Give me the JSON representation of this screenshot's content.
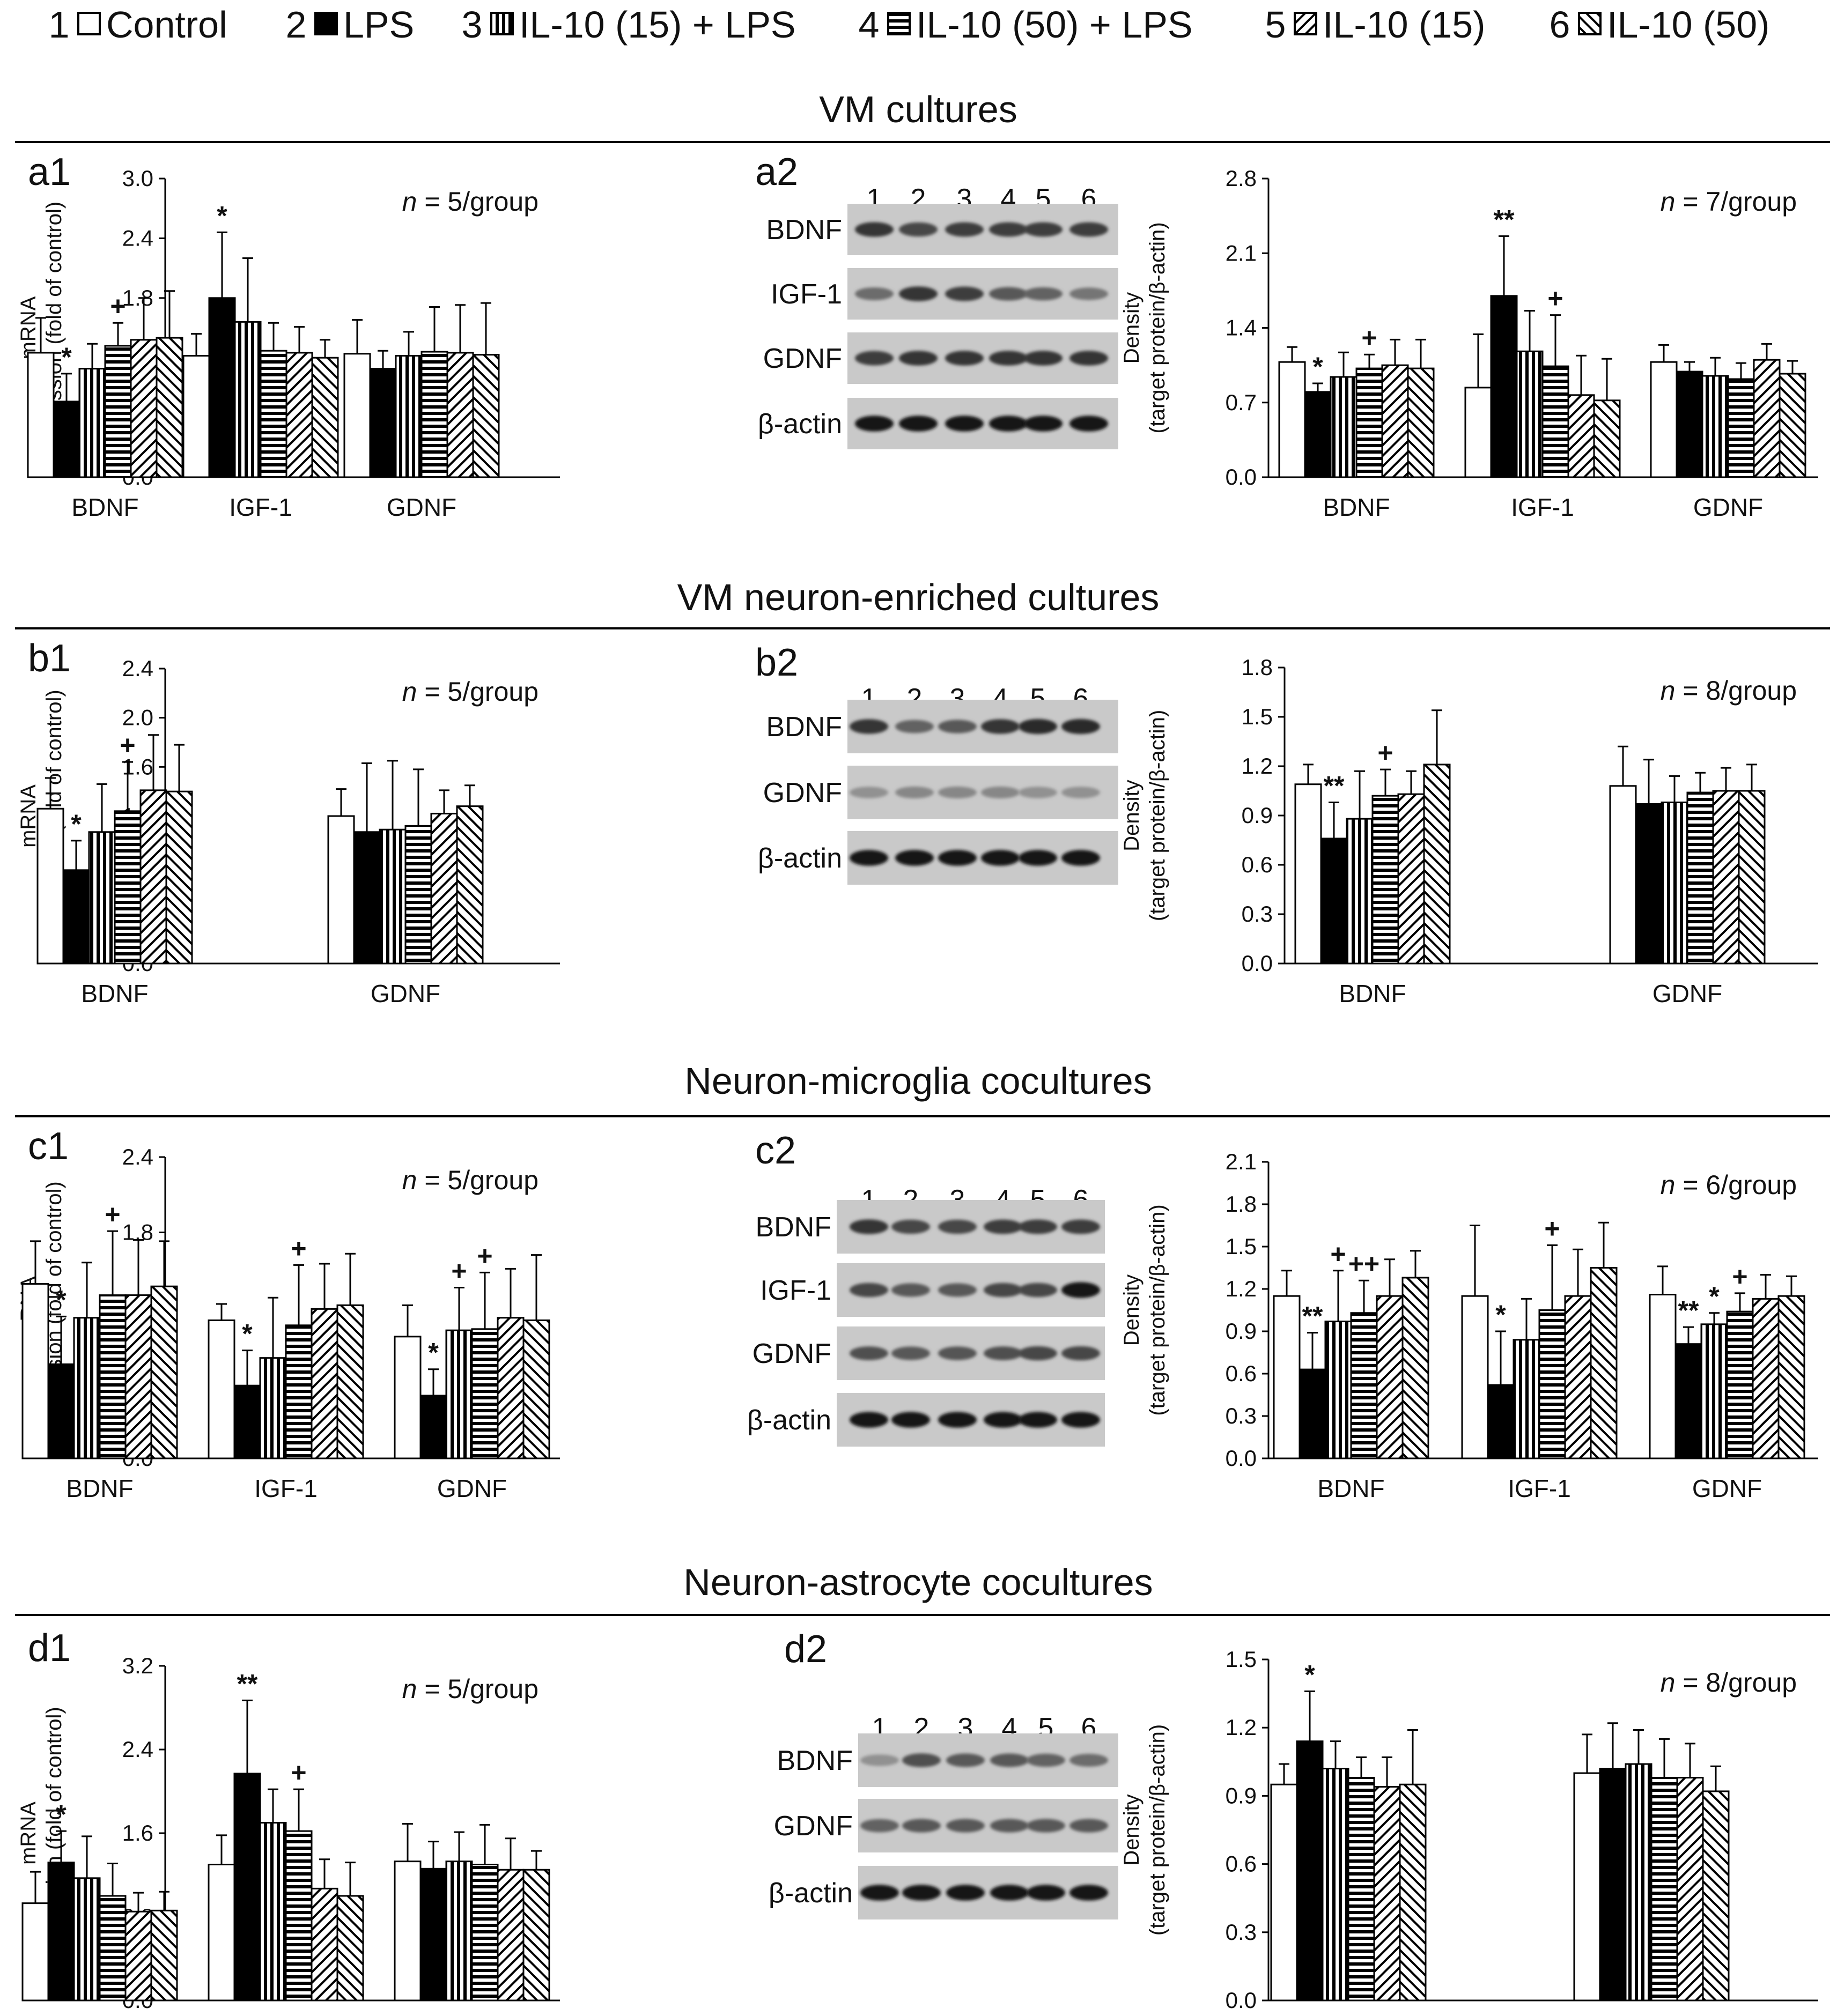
{
  "legend": {
    "items": [
      {
        "num": "1",
        "label": "Control",
        "pattern": "white"
      },
      {
        "num": "2",
        "label": "LPS",
        "pattern": "black"
      },
      {
        "num": "3",
        "label": "IL-10 (15) + LPS",
        "pattern": "vert"
      },
      {
        "num": "4",
        "label": "IL-10 (50) + LPS",
        "pattern": "horiz"
      },
      {
        "num": "5",
        "label": "IL-10 (15)",
        "pattern": "diagdown"
      },
      {
        "num": "6",
        "label": "IL-10 (50)",
        "pattern": "diagup"
      }
    ]
  },
  "sections": [
    {
      "title": "VM cultures"
    },
    {
      "title": "VM neuron-enriched cultures"
    },
    {
      "title": "Neuron-microglia cocultures"
    },
    {
      "title": "Neuron-astrocyte cocultures"
    }
  ],
  "blots": [
    {
      "panel_label": "a2",
      "lanes": [
        "1",
        "2",
        "3",
        "4",
        "5",
        "6"
      ],
      "rows": [
        "BDNF",
        "IGF-1",
        "GDNF",
        "β-actin"
      ]
    },
    {
      "panel_label": "b2",
      "lanes": [
        "1",
        "2",
        "3",
        "4",
        "5",
        "6"
      ],
      "rows": [
        "BDNF",
        "GDNF",
        "β-actin"
      ]
    },
    {
      "panel_label": "c2",
      "lanes": [
        "1",
        "2",
        "3",
        "4",
        "5",
        "6"
      ],
      "rows": [
        "BDNF",
        "IGF-1",
        "GDNF",
        "β-actin"
      ]
    },
    {
      "panel_label": "d2",
      "lanes": [
        "1",
        "2",
        "3",
        "4",
        "5",
        "6"
      ],
      "rows": [
        "BDNF",
        "GDNF",
        "β-actin"
      ]
    }
  ],
  "chart_data": [
    {
      "panel_label": "a1",
      "type": "bar",
      "ylabel": "mRNA expression (fold of control)",
      "ylim": [
        0,
        3.0
      ],
      "yticks": [
        "0.0",
        "0.6",
        "1.2",
        "1.8",
        "2.4",
        "3.0"
      ],
      "n_label": "n = 5/group",
      "categories": [
        "BDNF",
        "IGF-1",
        "GDNF"
      ],
      "series": [
        {
          "name": "Control",
          "values": [
            1.25,
            1.22,
            1.24
          ],
          "errors": [
            0.35,
            0.22,
            0.34
          ]
        },
        {
          "name": "LPS",
          "values": [
            0.76,
            1.8,
            1.09
          ],
          "errors": [
            0.28,
            0.66,
            0.18
          ]
        },
        {
          "name": "IL-10 (15) + LPS",
          "values": [
            1.09,
            1.56,
            1.22
          ],
          "errors": [
            0.25,
            0.64,
            0.24
          ]
        },
        {
          "name": "IL-10 (50) + LPS",
          "values": [
            1.32,
            1.27,
            1.26
          ],
          "errors": [
            0.23,
            0.28,
            0.45
          ]
        },
        {
          "name": "IL-10 (15)",
          "values": [
            1.38,
            1.25,
            1.25
          ],
          "errors": [
            0.42,
            0.26,
            0.48
          ]
        },
        {
          "name": "IL-10 (50)",
          "values": [
            1.4,
            1.2,
            1.23
          ],
          "errors": [
            0.47,
            0.18,
            0.52
          ]
        }
      ],
      "annotations": [
        {
          "cat": 0,
          "bar": 1,
          "text": "*"
        },
        {
          "cat": 0,
          "bar": 3,
          "text": "+"
        },
        {
          "cat": 1,
          "bar": 1,
          "text": "*"
        }
      ]
    },
    {
      "panel_label": "",
      "type": "bar",
      "ylabel": "Density (target protein/β-actin)",
      "ylim": [
        0,
        2.8
      ],
      "yticks": [
        "0.0",
        "0.7",
        "1.4",
        "2.1",
        "2.8"
      ],
      "n_label": "n = 7/group",
      "categories": [
        "BDNF",
        "IGF-1",
        "GDNF"
      ],
      "series": [
        {
          "name": "Control",
          "values": [
            1.08,
            0.84,
            1.08
          ],
          "errors": [
            0.14,
            0.5,
            0.16
          ]
        },
        {
          "name": "LPS",
          "values": [
            0.8,
            1.7,
            0.99
          ],
          "errors": [
            0.08,
            0.56,
            0.09
          ]
        },
        {
          "name": "IL-10 (15) + LPS",
          "values": [
            0.94,
            1.18,
            0.95
          ],
          "errors": [
            0.23,
            0.38,
            0.17
          ]
        },
        {
          "name": "IL-10 (50) + LPS",
          "values": [
            1.02,
            1.04,
            0.92
          ],
          "errors": [
            0.13,
            0.48,
            0.15
          ]
        },
        {
          "name": "IL-10 (15)",
          "values": [
            1.05,
            0.77,
            1.1
          ],
          "errors": [
            0.24,
            0.37,
            0.15
          ]
        },
        {
          "name": "IL-10 (50)",
          "values": [
            1.02,
            0.72,
            0.97
          ],
          "errors": [
            0.27,
            0.39,
            0.12
          ]
        }
      ],
      "annotations": [
        {
          "cat": 0,
          "bar": 1,
          "text": "*"
        },
        {
          "cat": 0,
          "bar": 3,
          "text": "+"
        },
        {
          "cat": 1,
          "bar": 1,
          "text": "**"
        },
        {
          "cat": 1,
          "bar": 3,
          "text": "+"
        }
      ]
    },
    {
      "panel_label": "b1",
      "type": "bar",
      "ylabel": "mRNA expression (fold of control)",
      "ylim": [
        0,
        2.4
      ],
      "yticks": [
        "0.0",
        "0.4",
        "0.8",
        "1.2",
        "1.6",
        "2.0",
        "2.4"
      ],
      "n_label": "n = 5/group",
      "categories": [
        "BDNF",
        "GDNF"
      ],
      "series": [
        {
          "name": "Control",
          "values": [
            1.26,
            1.2
          ],
          "errors": [
            0.25,
            0.22
          ]
        },
        {
          "name": "LPS",
          "values": [
            0.76,
            1.07
          ],
          "errors": [
            0.24,
            0.56
          ]
        },
        {
          "name": "IL-10 (15) + LPS",
          "values": [
            1.07,
            1.09
          ],
          "errors": [
            0.39,
            0.56
          ]
        },
        {
          "name": "IL-10 (50) + LPS",
          "values": [
            1.24,
            1.12
          ],
          "errors": [
            0.4,
            0.46
          ]
        },
        {
          "name": "IL-10 (15)",
          "values": [
            1.41,
            1.22
          ],
          "errors": [
            0.45,
            0.19
          ]
        },
        {
          "name": "IL-10 (50)",
          "values": [
            1.4,
            1.28
          ],
          "errors": [
            0.38,
            0.17
          ]
        }
      ],
      "annotations": [
        {
          "cat": 0,
          "bar": 1,
          "text": "*"
        },
        {
          "cat": 0,
          "bar": 3,
          "text": "+"
        }
      ]
    },
    {
      "panel_label": "",
      "type": "bar",
      "ylabel": "Density (target protein/β-actin)",
      "ylim": [
        0,
        1.8
      ],
      "yticks": [
        "0.0",
        "0.3",
        "0.6",
        "0.9",
        "1.2",
        "1.5",
        "1.8"
      ],
      "n_label": "n = 8/group",
      "categories": [
        "BDNF",
        "GDNF"
      ],
      "series": [
        {
          "name": "Control",
          "values": [
            1.09,
            1.08
          ],
          "errors": [
            0.12,
            0.24
          ]
        },
        {
          "name": "LPS",
          "values": [
            0.76,
            0.97
          ],
          "errors": [
            0.22,
            0.27
          ]
        },
        {
          "name": "IL-10 (15) + LPS",
          "values": [
            0.88,
            0.98
          ],
          "errors": [
            0.29,
            0.16
          ]
        },
        {
          "name": "IL-10 (50) + LPS",
          "values": [
            1.02,
            1.04
          ],
          "errors": [
            0.16,
            0.12
          ]
        },
        {
          "name": "IL-10 (15)",
          "values": [
            1.03,
            1.05
          ],
          "errors": [
            0.14,
            0.14
          ]
        },
        {
          "name": "IL-10 (50)",
          "values": [
            1.21,
            1.05
          ],
          "errors": [
            0.33,
            0.16
          ]
        }
      ],
      "annotations": [
        {
          "cat": 0,
          "bar": 1,
          "text": "**"
        },
        {
          "cat": 0,
          "bar": 3,
          "text": "+"
        }
      ]
    },
    {
      "panel_label": "c1",
      "type": "bar",
      "ylabel": "mRNA expression (fold of control)",
      "ylim": [
        0,
        2.4
      ],
      "yticks": [
        "0.0",
        "0.6",
        "1.2",
        "1.8",
        "2.4"
      ],
      "n_label": "n = 5/group",
      "categories": [
        "BDNF",
        "IGF-1",
        "GDNF"
      ],
      "series": [
        {
          "name": "Control",
          "values": [
            1.39,
            1.1,
            0.97
          ],
          "errors": [
            0.34,
            0.13,
            0.25
          ]
        },
        {
          "name": "LPS",
          "values": [
            0.75,
            0.58,
            0.5
          ],
          "errors": [
            0.38,
            0.28,
            0.21
          ]
        },
        {
          "name": "IL-10 (15) + LPS",
          "values": [
            1.12,
            0.8,
            1.02
          ],
          "errors": [
            0.44,
            0.48,
            0.34
          ]
        },
        {
          "name": "IL-10 (50) + LPS",
          "values": [
            1.3,
            1.06,
            1.03
          ],
          "errors": [
            0.51,
            0.48,
            0.45
          ]
        },
        {
          "name": "IL-10 (15)",
          "values": [
            1.3,
            1.19,
            1.12
          ],
          "errors": [
            0.44,
            0.36,
            0.39
          ]
        },
        {
          "name": "IL-10 (50)",
          "values": [
            1.37,
            1.22,
            1.1
          ],
          "errors": [
            0.36,
            0.41,
            0.52
          ]
        }
      ],
      "annotations": [
        {
          "cat": 0,
          "bar": 1,
          "text": "*"
        },
        {
          "cat": 0,
          "bar": 3,
          "text": "+"
        },
        {
          "cat": 1,
          "bar": 1,
          "text": "*"
        },
        {
          "cat": 1,
          "bar": 3,
          "text": "+"
        },
        {
          "cat": 2,
          "bar": 1,
          "text": "*"
        },
        {
          "cat": 2,
          "bar": 2,
          "text": "+"
        },
        {
          "cat": 2,
          "bar": 3,
          "text": "+"
        }
      ]
    },
    {
      "panel_label": "",
      "type": "bar",
      "ylabel": "Density (target protein/β-actin)",
      "ylim": [
        0,
        2.1
      ],
      "yticks": [
        "0.0",
        "0.3",
        "0.6",
        "0.9",
        "1.2",
        "1.5",
        "1.8",
        "2.1"
      ],
      "n_label": "n = 6/group",
      "categories": [
        "BDNF",
        "IGF-1",
        "GDNF"
      ],
      "series": [
        {
          "name": "Control",
          "values": [
            1.15,
            1.15,
            1.16
          ],
          "errors": [
            0.18,
            0.5,
            0.2
          ]
        },
        {
          "name": "LPS",
          "values": [
            0.63,
            0.52,
            0.81
          ],
          "errors": [
            0.26,
            0.38,
            0.12
          ]
        },
        {
          "name": "IL-10 (15) + LPS",
          "values": [
            0.97,
            0.84,
            0.95
          ],
          "errors": [
            0.36,
            0.29,
            0.08
          ]
        },
        {
          "name": "IL-10 (50) + LPS",
          "values": [
            1.03,
            1.05,
            1.04
          ],
          "errors": [
            0.23,
            0.46,
            0.13
          ]
        },
        {
          "name": "IL-10 (15)",
          "values": [
            1.15,
            1.15,
            1.13
          ],
          "errors": [
            0.26,
            0.33,
            0.17
          ]
        },
        {
          "name": "IL-10 (50)",
          "values": [
            1.28,
            1.35,
            1.15
          ],
          "errors": [
            0.19,
            0.32,
            0.14
          ]
        }
      ],
      "annotations": [
        {
          "cat": 0,
          "bar": 1,
          "text": "**"
        },
        {
          "cat": 0,
          "bar": 2,
          "text": "+"
        },
        {
          "cat": 0,
          "bar": 3,
          "text": "++"
        },
        {
          "cat": 1,
          "bar": 1,
          "text": "*"
        },
        {
          "cat": 1,
          "bar": 3,
          "text": "+"
        },
        {
          "cat": 2,
          "bar": 1,
          "text": "**"
        },
        {
          "cat": 2,
          "bar": 2,
          "text": "*"
        },
        {
          "cat": 2,
          "bar": 3,
          "text": "+"
        }
      ]
    },
    {
      "panel_label": "d1",
      "type": "bar",
      "ylabel": "mRNA expression (fold of control)",
      "ylim": [
        0,
        3.2
      ],
      "yticks": [
        "0.0",
        "0.8",
        "1.6",
        "2.4",
        "3.2"
      ],
      "n_label": "n = 5/group",
      "categories": [
        "BDNF",
        "IGF-1",
        "GDNF"
      ],
      "series": [
        {
          "name": "Control",
          "values": [
            0.93,
            1.3,
            1.33
          ],
          "errors": [
            0.3,
            0.28,
            0.36
          ]
        },
        {
          "name": "LPS",
          "values": [
            1.32,
            2.17,
            1.26
          ],
          "errors": [
            0.3,
            0.7,
            0.26
          ]
        },
        {
          "name": "IL-10 (15) + LPS",
          "values": [
            1.17,
            1.7,
            1.33
          ],
          "errors": [
            0.4,
            0.32,
            0.28
          ]
        },
        {
          "name": "IL-10 (50) + LPS",
          "values": [
            1.0,
            1.62,
            1.3
          ],
          "errors": [
            0.31,
            0.4,
            0.38
          ]
        },
        {
          "name": "IL-10 (15)",
          "values": [
            0.85,
            1.07,
            1.25
          ],
          "errors": [
            0.18,
            0.28,
            0.3
          ]
        },
        {
          "name": "IL-10 (50)",
          "values": [
            0.86,
            1.0,
            1.25
          ],
          "errors": [
            0.18,
            0.32,
            0.18
          ]
        }
      ],
      "annotations": [
        {
          "cat": 0,
          "bar": 1,
          "text": "*"
        },
        {
          "cat": 1,
          "bar": 1,
          "text": "**"
        },
        {
          "cat": 1,
          "bar": 3,
          "text": "+"
        }
      ]
    },
    {
      "panel_label": "",
      "type": "bar",
      "ylabel": "Density (target protein/β-actin)",
      "ylim": [
        0,
        1.5
      ],
      "yticks": [
        "0.0",
        "0.3",
        "0.6",
        "0.9",
        "1.2",
        "1.5"
      ],
      "n_label": "n = 8/group",
      "categories": [
        "BDNF",
        "GDNF"
      ],
      "series": [
        {
          "name": "Control",
          "values": [
            0.95,
            1.0
          ],
          "errors": [
            0.09,
            0.17
          ]
        },
        {
          "name": "LPS",
          "values": [
            1.14,
            1.02
          ],
          "errors": [
            0.22,
            0.2
          ]
        },
        {
          "name": "IL-10 (15) + LPS",
          "values": [
            1.02,
            1.04
          ],
          "errors": [
            0.12,
            0.15
          ]
        },
        {
          "name": "IL-10 (50) + LPS",
          "values": [
            0.98,
            0.98
          ],
          "errors": [
            0.09,
            0.17
          ]
        },
        {
          "name": "IL-10 (15)",
          "values": [
            0.94,
            0.98
          ],
          "errors": [
            0.13,
            0.15
          ]
        },
        {
          "name": "IL-10 (50)",
          "values": [
            0.95,
            0.92
          ],
          "errors": [
            0.24,
            0.11
          ]
        }
      ],
      "annotations": [
        {
          "cat": 0,
          "bar": 1,
          "text": "*"
        }
      ]
    }
  ]
}
